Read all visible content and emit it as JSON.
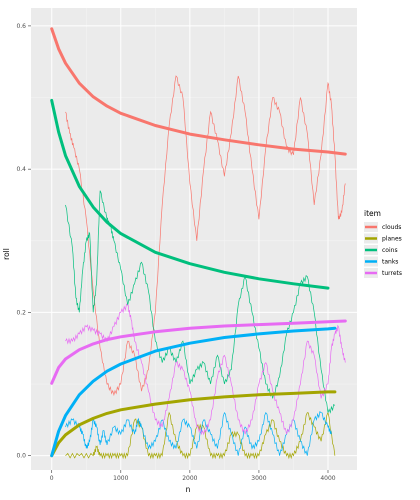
{
  "chart_data": {
    "type": "line",
    "title": "",
    "xlabel": "n",
    "ylabel": "roll",
    "xlim": [
      -300,
      4420
    ],
    "ylim": [
      -0.02,
      0.625
    ],
    "xticks": [
      0,
      1000,
      2000,
      3000,
      4000
    ],
    "yticks": [
      0.0,
      0.2,
      0.4,
      0.6
    ],
    "xtick_labels": [
      "0",
      "1000",
      "2000",
      "3000",
      "4000"
    ],
    "ytick_labels": [
      "0.0",
      "0.2",
      "0.4",
      "0.6"
    ],
    "grid": true,
    "panel_background": "#ebebeb",
    "legend": {
      "title": "item",
      "position": "right",
      "items": [
        "clouds",
        "planes",
        "coins",
        "tanks",
        "turrets"
      ]
    },
    "colors": {
      "clouds": "#f8766d",
      "planes": "#a3a500",
      "coins": "#00bf7d",
      "tanks": "#00b0f6",
      "turrets": "#e76bf3"
    },
    "series": [
      {
        "name": "clouds",
        "trend": {
          "x": [
            0,
            100,
            200,
            400,
            600,
            800,
            1000,
            1500,
            2000,
            2500,
            3000,
            3500,
            4000,
            4250
          ],
          "y": [
            0.596,
            0.568,
            0.548,
            0.52,
            0.501,
            0.488,
            0.478,
            0.461,
            0.449,
            0.441,
            0.434,
            0.428,
            0.424,
            0.421
          ]
        },
        "raw": {
          "x": [
            200,
            260,
            320,
            400,
            500,
            600,
            700,
            800,
            900,
            1000,
            1100,
            1200,
            1300,
            1400,
            1500,
            1600,
            1700,
            1800,
            1900,
            2000,
            2100,
            2200,
            2300,
            2400,
            2500,
            2600,
            2700,
            2800,
            2900,
            3000,
            3100,
            3200,
            3300,
            3400,
            3500,
            3600,
            3700,
            3800,
            3900,
            4000,
            4050,
            4100,
            4150,
            4200,
            4250
          ],
          "y": [
            0.48,
            0.45,
            0.43,
            0.4,
            0.33,
            0.23,
            0.15,
            0.1,
            0.085,
            0.1,
            0.16,
            0.14,
            0.09,
            0.12,
            0.2,
            0.35,
            0.46,
            0.53,
            0.5,
            0.38,
            0.3,
            0.4,
            0.48,
            0.44,
            0.39,
            0.45,
            0.53,
            0.48,
            0.4,
            0.33,
            0.43,
            0.5,
            0.48,
            0.43,
            0.42,
            0.5,
            0.45,
            0.35,
            0.42,
            0.52,
            0.49,
            0.42,
            0.33,
            0.34,
            0.38
          ]
        }
      },
      {
        "name": "planes",
        "trend": {
          "x": [
            0,
            100,
            200,
            400,
            600,
            800,
            1000,
            1500,
            2000,
            2500,
            3000,
            3500,
            4000,
            4100
          ],
          "y": [
            0.0,
            0.018,
            0.029,
            0.043,
            0.052,
            0.059,
            0.064,
            0.072,
            0.078,
            0.082,
            0.085,
            0.087,
            0.089,
            0.089
          ]
        },
        "raw": {
          "x": [
            200,
            400,
            600,
            650,
            700,
            800,
            900,
            1000,
            1100,
            1200,
            1300,
            1400,
            1500,
            1600,
            1700,
            1800,
            1900,
            2000,
            2100,
            2200,
            2300,
            2400,
            2500,
            2600,
            2700,
            2800,
            2900,
            3000,
            3100,
            3200,
            3300,
            3400,
            3500,
            3600,
            3700,
            3800,
            3900,
            4000,
            4100
          ],
          "y": [
            0.0,
            0.0,
            0.0,
            0.012,
            0.0,
            0.0,
            0.0,
            0.0,
            0.0,
            0.05,
            0.04,
            0.0,
            0.0,
            0.0,
            0.06,
            0.02,
            0.0,
            0.0,
            0.04,
            0.04,
            0.0,
            0.0,
            0.0,
            0.03,
            0.03,
            0.0,
            0.0,
            0.0,
            0.03,
            0.05,
            0.02,
            0.0,
            0.0,
            0.02,
            0.06,
            0.04,
            0.02,
            0.06,
            0.0
          ]
        }
      },
      {
        "name": "coins",
        "trend": {
          "x": [
            0,
            100,
            200,
            400,
            600,
            800,
            1000,
            1500,
            2000,
            2500,
            3000,
            3500,
            4000
          ],
          "y": [
            0.496,
            0.452,
            0.419,
            0.376,
            0.347,
            0.326,
            0.31,
            0.284,
            0.268,
            0.256,
            0.247,
            0.24,
            0.234
          ]
        },
        "raw": {
          "x": [
            200,
            300,
            350,
            400,
            450,
            500,
            550,
            600,
            650,
            700,
            800,
            850,
            900,
            1000,
            1100,
            1200,
            1300,
            1400,
            1500,
            1600,
            1700,
            1800,
            1900,
            2000,
            2100,
            2200,
            2300,
            2400,
            2500,
            2600,
            2700,
            2800,
            2900,
            3000,
            3100,
            3200,
            3300,
            3400,
            3500,
            3600,
            3700,
            3800,
            3900,
            4000,
            4100
          ],
          "y": [
            0.35,
            0.29,
            0.22,
            0.2,
            0.26,
            0.3,
            0.31,
            0.2,
            0.24,
            0.37,
            0.33,
            0.32,
            0.3,
            0.26,
            0.21,
            0.24,
            0.27,
            0.23,
            0.16,
            0.13,
            0.15,
            0.13,
            0.16,
            0.1,
            0.12,
            0.13,
            0.1,
            0.14,
            0.1,
            0.12,
            0.21,
            0.25,
            0.2,
            0.15,
            0.1,
            0.08,
            0.11,
            0.17,
            0.2,
            0.24,
            0.25,
            0.2,
            0.12,
            0.06,
            0.07
          ]
        }
      },
      {
        "name": "tanks",
        "trend": {
          "x": [
            0,
            100,
            200,
            400,
            600,
            800,
            1000,
            1500,
            2000,
            2500,
            3000,
            3500,
            4000,
            4100
          ],
          "y": [
            0.0,
            0.034,
            0.056,
            0.085,
            0.104,
            0.118,
            0.128,
            0.146,
            0.157,
            0.165,
            0.17,
            0.174,
            0.177,
            0.178
          ]
        },
        "raw": {
          "x": [
            200,
            300,
            400,
            450,
            500,
            550,
            600,
            650,
            700,
            750,
            800,
            900,
            1000,
            1100,
            1200,
            1250,
            1300,
            1400,
            1500,
            1600,
            1700,
            1800,
            1900,
            2000,
            2100,
            2200,
            2300,
            2400,
            2500,
            2600,
            2700,
            2800,
            2900,
            3000,
            3100,
            3200,
            3300,
            3400,
            3500,
            3600,
            3700,
            3800,
            3900,
            4000,
            4050
          ],
          "y": [
            0.04,
            0.05,
            0.04,
            0.03,
            0.01,
            0.02,
            0.05,
            0.04,
            0.015,
            0.035,
            0.015,
            0.04,
            0.03,
            0.05,
            0.03,
            0.05,
            0.04,
            0.01,
            0.02,
            0.05,
            0.02,
            0.01,
            0.05,
            0.04,
            0.01,
            0.05,
            0.03,
            0.01,
            0.06,
            0.03,
            0.0,
            0.04,
            0.01,
            0.02,
            0.06,
            0.03,
            0.0,
            0.03,
            0.05,
            0.02,
            0.0,
            0.05,
            0.06,
            0.04,
            0.03
          ]
        }
      },
      {
        "name": "turrets",
        "trend": {
          "x": [
            0,
            100,
            200,
            400,
            600,
            800,
            1000,
            1500,
            2000,
            2500,
            3000,
            3500,
            4000,
            4250
          ],
          "y": [
            0.101,
            0.123,
            0.135,
            0.148,
            0.156,
            0.162,
            0.166,
            0.173,
            0.178,
            0.181,
            0.183,
            0.185,
            0.187,
            0.188
          ]
        },
        "raw": {
          "x": [
            200,
            300,
            400,
            500,
            600,
            700,
            800,
            900,
            1000,
            1100,
            1150,
            1200,
            1300,
            1400,
            1500,
            1600,
            1700,
            1800,
            1900,
            2000,
            2100,
            2200,
            2300,
            2400,
            2500,
            2600,
            2700,
            2800,
            2900,
            3000,
            3100,
            3200,
            3300,
            3400,
            3500,
            3600,
            3700,
            3800,
            3900,
            4000,
            4050,
            4100,
            4150,
            4200,
            4250
          ],
          "y": [
            0.16,
            0.16,
            0.17,
            0.18,
            0.175,
            0.17,
            0.16,
            0.18,
            0.2,
            0.21,
            0.19,
            0.16,
            0.13,
            0.09,
            0.05,
            0.04,
            0.08,
            0.13,
            0.12,
            0.09,
            0.04,
            0.03,
            0.05,
            0.11,
            0.14,
            0.1,
            0.05,
            0.03,
            0.05,
            0.1,
            0.13,
            0.09,
            0.06,
            0.03,
            0.05,
            0.1,
            0.16,
            0.14,
            0.08,
            0.1,
            0.15,
            0.17,
            0.18,
            0.15,
            0.13
          ]
        }
      }
    ]
  }
}
